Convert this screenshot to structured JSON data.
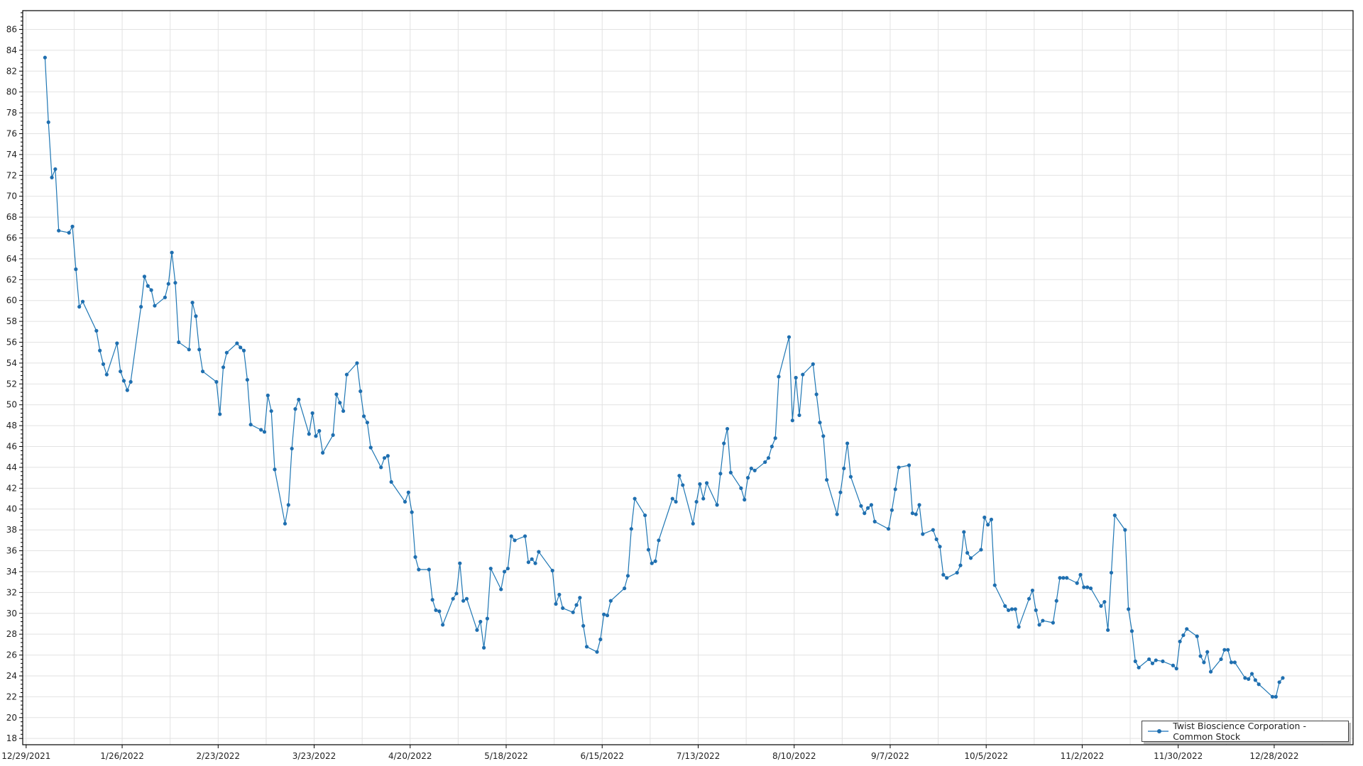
{
  "chart_data": {
    "type": "line",
    "title": "",
    "xlabel": "",
    "ylabel": "",
    "ylim": [
      17.4,
      87.8
    ],
    "xlim": [
      "2021-12-28",
      "2023-01-20"
    ],
    "grid": true,
    "legend_position": "bottom-right",
    "line_color": "#1f77b4",
    "y_ticks": [
      18,
      20,
      22,
      24,
      26,
      28,
      30,
      32,
      34,
      36,
      38,
      40,
      42,
      44,
      46,
      48,
      50,
      52,
      54,
      56,
      58,
      60,
      62,
      64,
      66,
      68,
      70,
      72,
      74,
      76,
      78,
      80,
      82,
      84,
      86
    ],
    "x_tick_labels": [
      "12/29/2021",
      "1/26/2022",
      "2/23/2022",
      "3/23/2022",
      "4/20/2022",
      "5/18/2022",
      "6/15/2022",
      "7/13/2022",
      "8/10/2022",
      "9/7/2022",
      "10/5/2022",
      "11/2/2022",
      "11/30/2022",
      "12/28/2022"
    ],
    "series": [
      {
        "name": "Twist Bioscience Corporation - Common Stock",
        "points": [
          [
            "2022-01-03",
            83.3
          ],
          [
            "2022-01-04",
            77.1
          ],
          [
            "2022-01-05",
            71.8
          ],
          [
            "2022-01-06",
            72.6
          ],
          [
            "2022-01-07",
            66.7
          ],
          [
            "2022-01-10",
            66.5
          ],
          [
            "2022-01-11",
            67.1
          ],
          [
            "2022-01-12",
            63.0
          ],
          [
            "2022-01-13",
            59.4
          ],
          [
            "2022-01-14",
            59.9
          ],
          [
            "2022-01-18",
            57.1
          ],
          [
            "2022-01-19",
            55.2
          ],
          [
            "2022-01-20",
            53.9
          ],
          [
            "2022-01-21",
            52.9
          ],
          [
            "2022-01-24",
            55.9
          ],
          [
            "2022-01-25",
            53.2
          ],
          [
            "2022-01-26",
            52.3
          ],
          [
            "2022-01-27",
            51.4
          ],
          [
            "2022-01-28",
            52.2
          ],
          [
            "2022-01-31",
            59.4
          ],
          [
            "2022-02-01",
            62.3
          ],
          [
            "2022-02-02",
            61.4
          ],
          [
            "2022-02-03",
            61.0
          ],
          [
            "2022-02-04",
            59.5
          ],
          [
            "2022-02-07",
            60.3
          ],
          [
            "2022-02-08",
            61.6
          ],
          [
            "2022-02-09",
            64.6
          ],
          [
            "2022-02-10",
            61.7
          ],
          [
            "2022-02-11",
            56.0
          ],
          [
            "2022-02-14",
            55.3
          ],
          [
            "2022-02-15",
            59.8
          ],
          [
            "2022-02-16",
            58.5
          ],
          [
            "2022-02-17",
            55.3
          ],
          [
            "2022-02-18",
            53.2
          ],
          [
            "2022-02-22",
            52.2
          ],
          [
            "2022-02-23",
            49.1
          ],
          [
            "2022-02-24",
            53.6
          ],
          [
            "2022-02-25",
            55.0
          ],
          [
            "2022-02-28",
            55.9
          ],
          [
            "2022-03-01",
            55.5
          ],
          [
            "2022-03-02",
            55.2
          ],
          [
            "2022-03-03",
            52.4
          ],
          [
            "2022-03-04",
            48.1
          ],
          [
            "2022-03-07",
            47.6
          ],
          [
            "2022-03-08",
            47.4
          ],
          [
            "2022-03-09",
            50.9
          ],
          [
            "2022-03-10",
            49.4
          ],
          [
            "2022-03-11",
            43.8
          ],
          [
            "2022-03-14",
            38.6
          ],
          [
            "2022-03-15",
            40.4
          ],
          [
            "2022-03-16",
            45.8
          ],
          [
            "2022-03-17",
            49.6
          ],
          [
            "2022-03-18",
            50.5
          ],
          [
            "2022-03-21",
            47.2
          ],
          [
            "2022-03-22",
            49.2
          ],
          [
            "2022-03-23",
            47.0
          ],
          [
            "2022-03-24",
            47.5
          ],
          [
            "2022-03-25",
            45.4
          ],
          [
            "2022-03-28",
            47.1
          ],
          [
            "2022-03-29",
            51.0
          ],
          [
            "2022-03-30",
            50.2
          ],
          [
            "2022-03-31",
            49.4
          ],
          [
            "2022-04-01",
            52.9
          ],
          [
            "2022-04-04",
            54.0
          ],
          [
            "2022-04-05",
            51.3
          ],
          [
            "2022-04-06",
            48.9
          ],
          [
            "2022-04-07",
            48.3
          ],
          [
            "2022-04-08",
            45.9
          ],
          [
            "2022-04-11",
            44.0
          ],
          [
            "2022-04-12",
            44.9
          ],
          [
            "2022-04-13",
            45.1
          ],
          [
            "2022-04-14",
            42.6
          ],
          [
            "2022-04-18",
            40.7
          ],
          [
            "2022-04-19",
            41.6
          ],
          [
            "2022-04-20",
            39.7
          ],
          [
            "2022-04-21",
            35.4
          ],
          [
            "2022-04-22",
            34.2
          ],
          [
            "2022-04-25",
            34.2
          ],
          [
            "2022-04-26",
            31.3
          ],
          [
            "2022-04-27",
            30.3
          ],
          [
            "2022-04-28",
            30.2
          ],
          [
            "2022-04-29",
            28.9
          ],
          [
            "2022-05-02",
            31.4
          ],
          [
            "2022-05-03",
            31.9
          ],
          [
            "2022-05-04",
            34.8
          ],
          [
            "2022-05-05",
            31.2
          ],
          [
            "2022-05-06",
            31.4
          ],
          [
            "2022-05-09",
            28.4
          ],
          [
            "2022-05-10",
            29.2
          ],
          [
            "2022-05-11",
            26.7
          ],
          [
            "2022-05-12",
            29.5
          ],
          [
            "2022-05-13",
            34.3
          ],
          [
            "2022-05-16",
            32.3
          ],
          [
            "2022-05-17",
            34.0
          ],
          [
            "2022-05-18",
            34.3
          ],
          [
            "2022-05-19",
            37.4
          ],
          [
            "2022-05-20",
            37.0
          ],
          [
            "2022-05-23",
            37.4
          ],
          [
            "2022-05-24",
            34.9
          ],
          [
            "2022-05-25",
            35.2
          ],
          [
            "2022-05-26",
            34.8
          ],
          [
            "2022-05-27",
            35.9
          ],
          [
            "2022-05-31",
            34.1
          ],
          [
            "2022-06-01",
            30.9
          ],
          [
            "2022-06-02",
            31.8
          ],
          [
            "2022-06-03",
            30.5
          ],
          [
            "2022-06-06",
            30.1
          ],
          [
            "2022-06-07",
            30.8
          ],
          [
            "2022-06-08",
            31.5
          ],
          [
            "2022-06-09",
            28.8
          ],
          [
            "2022-06-10",
            26.8
          ],
          [
            "2022-06-13",
            26.3
          ],
          [
            "2022-06-14",
            27.5
          ],
          [
            "2022-06-15",
            29.9
          ],
          [
            "2022-06-16",
            29.8
          ],
          [
            "2022-06-17",
            31.2
          ],
          [
            "2022-06-21",
            32.4
          ],
          [
            "2022-06-22",
            33.6
          ],
          [
            "2022-06-23",
            38.1
          ],
          [
            "2022-06-24",
            41.0
          ],
          [
            "2022-06-27",
            39.4
          ],
          [
            "2022-06-28",
            36.1
          ],
          [
            "2022-06-29",
            34.8
          ],
          [
            "2022-06-30",
            35.0
          ],
          [
            "2022-07-01",
            37.0
          ],
          [
            "2022-07-05",
            41.0
          ],
          [
            "2022-07-06",
            40.7
          ],
          [
            "2022-07-07",
            43.2
          ],
          [
            "2022-07-08",
            42.3
          ],
          [
            "2022-07-11",
            38.6
          ],
          [
            "2022-07-12",
            40.7
          ],
          [
            "2022-07-13",
            42.4
          ],
          [
            "2022-07-14",
            41.0
          ],
          [
            "2022-07-15",
            42.5
          ],
          [
            "2022-07-18",
            40.4
          ],
          [
            "2022-07-19",
            43.4
          ],
          [
            "2022-07-20",
            46.3
          ],
          [
            "2022-07-21",
            47.7
          ],
          [
            "2022-07-22",
            43.5
          ],
          [
            "2022-07-25",
            42.0
          ],
          [
            "2022-07-26",
            40.9
          ],
          [
            "2022-07-27",
            43.0
          ],
          [
            "2022-07-28",
            43.9
          ],
          [
            "2022-07-29",
            43.7
          ],
          [
            "2022-08-01",
            44.5
          ],
          [
            "2022-08-02",
            44.9
          ],
          [
            "2022-08-03",
            46.0
          ],
          [
            "2022-08-04",
            46.8
          ],
          [
            "2022-08-05",
            52.7
          ],
          [
            "2022-08-08",
            56.5
          ],
          [
            "2022-08-09",
            48.5
          ],
          [
            "2022-08-10",
            52.6
          ],
          [
            "2022-08-11",
            49.0
          ],
          [
            "2022-08-12",
            52.9
          ],
          [
            "2022-08-15",
            53.9
          ],
          [
            "2022-08-16",
            51.0
          ],
          [
            "2022-08-17",
            48.3
          ],
          [
            "2022-08-18",
            47.0
          ],
          [
            "2022-08-19",
            42.8
          ],
          [
            "2022-08-22",
            39.5
          ],
          [
            "2022-08-23",
            41.6
          ],
          [
            "2022-08-24",
            43.9
          ],
          [
            "2022-08-25",
            46.3
          ],
          [
            "2022-08-26",
            43.1
          ],
          [
            "2022-08-29",
            40.3
          ],
          [
            "2022-08-30",
            39.6
          ],
          [
            "2022-08-31",
            40.1
          ],
          [
            "2022-09-01",
            40.4
          ],
          [
            "2022-09-02",
            38.8
          ],
          [
            "2022-09-06",
            38.1
          ],
          [
            "2022-09-07",
            39.9
          ],
          [
            "2022-09-08",
            41.9
          ],
          [
            "2022-09-09",
            44.0
          ],
          [
            "2022-09-12",
            44.2
          ],
          [
            "2022-09-13",
            39.6
          ],
          [
            "2022-09-14",
            39.5
          ],
          [
            "2022-09-15",
            40.4
          ],
          [
            "2022-09-16",
            37.6
          ],
          [
            "2022-09-19",
            38.0
          ],
          [
            "2022-09-20",
            37.1
          ],
          [
            "2022-09-21",
            36.4
          ],
          [
            "2022-09-22",
            33.7
          ],
          [
            "2022-09-23",
            33.4
          ],
          [
            "2022-09-26",
            33.9
          ],
          [
            "2022-09-27",
            34.6
          ],
          [
            "2022-09-28",
            37.8
          ],
          [
            "2022-09-29",
            35.8
          ],
          [
            "2022-09-30",
            35.3
          ],
          [
            "2022-10-03",
            36.1
          ],
          [
            "2022-10-04",
            39.2
          ],
          [
            "2022-10-05",
            38.5
          ],
          [
            "2022-10-06",
            39.0
          ],
          [
            "2022-10-07",
            32.7
          ],
          [
            "2022-10-10",
            30.7
          ],
          [
            "2022-10-11",
            30.3
          ],
          [
            "2022-10-12",
            30.4
          ],
          [
            "2022-10-13",
            30.4
          ],
          [
            "2022-10-14",
            28.7
          ],
          [
            "2022-10-17",
            31.4
          ],
          [
            "2022-10-18",
            32.2
          ],
          [
            "2022-10-19",
            30.3
          ],
          [
            "2022-10-20",
            28.9
          ],
          [
            "2022-10-21",
            29.3
          ],
          [
            "2022-10-24",
            29.1
          ],
          [
            "2022-10-25",
            31.2
          ],
          [
            "2022-10-26",
            33.4
          ],
          [
            "2022-10-27",
            33.4
          ],
          [
            "2022-10-28",
            33.4
          ],
          [
            "2022-10-31",
            32.9
          ],
          [
            "2022-11-01",
            33.7
          ],
          [
            "2022-11-02",
            32.5
          ],
          [
            "2022-11-03",
            32.5
          ],
          [
            "2022-11-04",
            32.4
          ],
          [
            "2022-11-07",
            30.7
          ],
          [
            "2022-11-08",
            31.1
          ],
          [
            "2022-11-09",
            28.4
          ],
          [
            "2022-11-10",
            33.9
          ],
          [
            "2022-11-11",
            39.4
          ],
          [
            "2022-11-14",
            38.0
          ],
          [
            "2022-11-15",
            30.4
          ],
          [
            "2022-11-16",
            28.3
          ],
          [
            "2022-11-17",
            25.4
          ],
          [
            "2022-11-18",
            24.8
          ],
          [
            "2022-11-21",
            25.6
          ],
          [
            "2022-11-22",
            25.2
          ],
          [
            "2022-11-23",
            25.5
          ],
          [
            "2022-11-25",
            25.4
          ],
          [
            "2022-11-28",
            25.0
          ],
          [
            "2022-11-29",
            24.7
          ],
          [
            "2022-11-30",
            27.3
          ],
          [
            "2022-12-01",
            27.9
          ],
          [
            "2022-12-02",
            28.5
          ],
          [
            "2022-12-05",
            27.8
          ],
          [
            "2022-12-06",
            25.9
          ],
          [
            "2022-12-07",
            25.3
          ],
          [
            "2022-12-08",
            26.3
          ],
          [
            "2022-12-09",
            24.4
          ],
          [
            "2022-12-12",
            25.6
          ],
          [
            "2022-12-13",
            26.5
          ],
          [
            "2022-12-14",
            26.5
          ],
          [
            "2022-12-15",
            25.3
          ],
          [
            "2022-12-16",
            25.3
          ],
          [
            "2022-12-19",
            23.8
          ],
          [
            "2022-12-20",
            23.7
          ],
          [
            "2022-12-21",
            24.2
          ],
          [
            "2022-12-22",
            23.6
          ],
          [
            "2022-12-23",
            23.2
          ],
          [
            "2022-12-27",
            22.0
          ],
          [
            "2022-12-28",
            22.0
          ],
          [
            "2022-12-29",
            23.4
          ],
          [
            "2022-12-30",
            23.8
          ]
        ]
      }
    ]
  },
  "legend": {
    "label": "Twist Bioscience Corporation - Common Stock"
  }
}
